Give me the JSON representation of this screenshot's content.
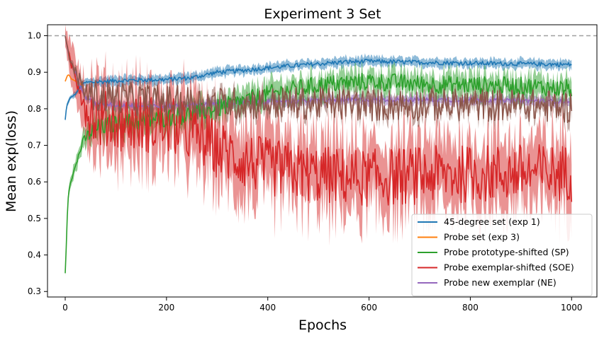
{
  "chart_data": {
    "type": "line",
    "title": "Experiment 3 Set",
    "xlabel": "Epochs",
    "ylabel": "Mean exp(loss)",
    "xlim": [
      -35,
      1050
    ],
    "ylim": [
      0.285,
      1.03
    ],
    "xticks": [
      0,
      200,
      400,
      600,
      800,
      1000
    ],
    "yticks": [
      0.3,
      0.4,
      0.5,
      0.6,
      0.7,
      0.8,
      0.9,
      1.0
    ],
    "grid": false,
    "legend_position": "lower-right",
    "reference_line": {
      "y": 1.0,
      "style": "dashed",
      "color": "#a0a0a0"
    },
    "series": [
      {
        "name": "45-degree set (exp 1)",
        "color": "#1f77b4",
        "noise": 0.006,
        "band": 0.012,
        "points": [
          [
            0,
            0.77
          ],
          [
            3,
            0.81
          ],
          [
            10,
            0.83
          ],
          [
            20,
            0.84
          ],
          [
            30,
            0.86
          ],
          [
            40,
            0.872
          ],
          [
            60,
            0.873
          ],
          [
            100,
            0.877
          ],
          [
            150,
            0.879
          ],
          [
            200,
            0.88
          ],
          [
            250,
            0.885
          ],
          [
            300,
            0.9
          ],
          [
            350,
            0.905
          ],
          [
            400,
            0.912
          ],
          [
            450,
            0.918
          ],
          [
            500,
            0.923
          ],
          [
            550,
            0.928
          ],
          [
            600,
            0.93
          ],
          [
            700,
            0.927
          ],
          [
            800,
            0.925
          ],
          [
            900,
            0.923
          ],
          [
            950,
            0.922
          ],
          [
            1000,
            0.921
          ]
        ]
      },
      {
        "name": "Probe set (exp 3)",
        "color": "#ff7f0e",
        "noise": 0.0,
        "band": 0.003,
        "points": [
          [
            0,
            0.875
          ],
          [
            4,
            0.89
          ],
          [
            7,
            0.894
          ],
          [
            12,
            0.882
          ],
          [
            20,
            0.876
          ],
          [
            30,
            0.868
          ],
          [
            36,
            0.86
          ]
        ]
      },
      {
        "name": "Probe prototype-shifted (SP)",
        "color": "#2ca02c",
        "noise": 0.025,
        "band": 0.03,
        "points": [
          [
            0,
            0.35
          ],
          [
            2,
            0.42
          ],
          [
            5,
            0.55
          ],
          [
            10,
            0.6
          ],
          [
            20,
            0.64
          ],
          [
            30,
            0.69
          ],
          [
            40,
            0.72
          ],
          [
            60,
            0.745
          ],
          [
            100,
            0.76
          ],
          [
            150,
            0.765
          ],
          [
            200,
            0.775
          ],
          [
            250,
            0.785
          ],
          [
            300,
            0.8
          ],
          [
            350,
            0.82
          ],
          [
            400,
            0.84
          ],
          [
            500,
            0.865
          ],
          [
            600,
            0.875
          ],
          [
            700,
            0.868
          ],
          [
            800,
            0.865
          ],
          [
            900,
            0.862
          ],
          [
            1000,
            0.855
          ]
        ]
      },
      {
        "name": "Probe exemplar-shifted (SOE)",
        "color": "#d62728",
        "noise": 0.08,
        "band": 0.09,
        "points": [
          [
            0,
            1.0
          ],
          [
            5,
            0.96
          ],
          [
            10,
            0.93
          ],
          [
            20,
            0.89
          ],
          [
            30,
            0.86
          ],
          [
            40,
            0.8
          ],
          [
            60,
            0.775
          ],
          [
            100,
            0.765
          ],
          [
            150,
            0.76
          ],
          [
            200,
            0.755
          ],
          [
            250,
            0.735
          ],
          [
            300,
            0.69
          ],
          [
            350,
            0.66
          ],
          [
            400,
            0.64
          ],
          [
            500,
            0.62
          ],
          [
            600,
            0.61
          ],
          [
            700,
            0.618
          ],
          [
            800,
            0.622
          ],
          [
            900,
            0.625
          ],
          [
            1000,
            0.625
          ]
        ]
      },
      {
        "name": "Probe new exemplar (NE)",
        "color": "#9467bd",
        "noise": 0.006,
        "band": 0.012,
        "points": [
          [
            0,
            1.0
          ],
          [
            5,
            0.96
          ],
          [
            10,
            0.93
          ],
          [
            20,
            0.9
          ],
          [
            30,
            0.86
          ],
          [
            40,
            0.83
          ],
          [
            60,
            0.815
          ],
          [
            100,
            0.81
          ],
          [
            200,
            0.807
          ],
          [
            300,
            0.815
          ],
          [
            400,
            0.82
          ],
          [
            500,
            0.822
          ],
          [
            600,
            0.825
          ],
          [
            700,
            0.825
          ],
          [
            800,
            0.824
          ],
          [
            900,
            0.822
          ],
          [
            1000,
            0.82
          ]
        ]
      },
      {
        "name": "",
        "color": "#8c564b",
        "noise": 0.045,
        "band": 0.02,
        "points": [
          [
            0,
            1.0
          ],
          [
            5,
            0.96
          ],
          [
            10,
            0.93
          ],
          [
            20,
            0.9
          ],
          [
            30,
            0.87
          ],
          [
            40,
            0.845
          ],
          [
            60,
            0.835
          ],
          [
            100,
            0.83
          ],
          [
            200,
            0.82
          ],
          [
            300,
            0.815
          ],
          [
            400,
            0.815
          ],
          [
            500,
            0.815
          ],
          [
            600,
            0.81
          ],
          [
            700,
            0.812
          ],
          [
            800,
            0.81
          ],
          [
            900,
            0.81
          ],
          [
            1000,
            0.805
          ]
        ]
      }
    ]
  }
}
